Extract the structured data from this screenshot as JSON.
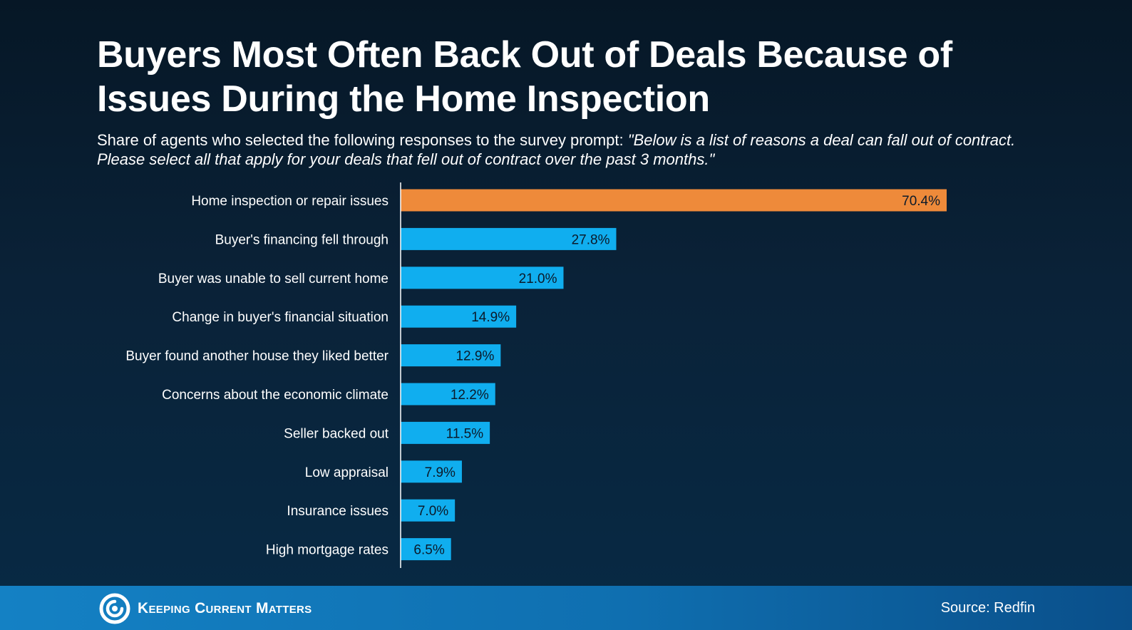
{
  "title": "Buyers Most Often Back Out of Deals Because of Issues During the Home Inspection",
  "subtitle": {
    "lead": "Share of agents who selected the following responses to the survey prompt: ",
    "quote": "\"Below is a list of reasons a deal can fall out of contract. Please select all that apply for your deals that fell out of contract over the past 3 months.\""
  },
  "colors": {
    "highlight": "#ee8a3a",
    "bar": "#10aeef",
    "axis": "#ffffff"
  },
  "chart_data": {
    "type": "bar",
    "orientation": "horizontal",
    "title": "Buyers Most Often Back Out of Deals Because of Issues During the Home Inspection",
    "xlabel": "",
    "ylabel": "",
    "xlim": [
      0,
      70.4
    ],
    "grid": false,
    "categories": [
      "Home inspection or repair issues",
      "Buyer's financing fell through",
      "Buyer was unable to sell current home",
      "Change in buyer's financial situation",
      "Buyer found another house they liked better",
      "Concerns about the economic climate",
      "Seller backed out",
      "Low appraisal",
      "Insurance issues",
      "High mortgage rates"
    ],
    "values": [
      70.4,
      27.8,
      21.0,
      14.9,
      12.9,
      12.2,
      11.5,
      7.9,
      7.0,
      6.5
    ],
    "value_labels": [
      "70.4%",
      "27.8%",
      "21.0%",
      "14.9%",
      "12.9%",
      "12.2%",
      "11.5%",
      "7.9%",
      "7.0%",
      "6.5%"
    ],
    "highlight_index": 0
  },
  "footer": {
    "brand": "Keeping Current Matters",
    "source": "Source: Redfin"
  }
}
